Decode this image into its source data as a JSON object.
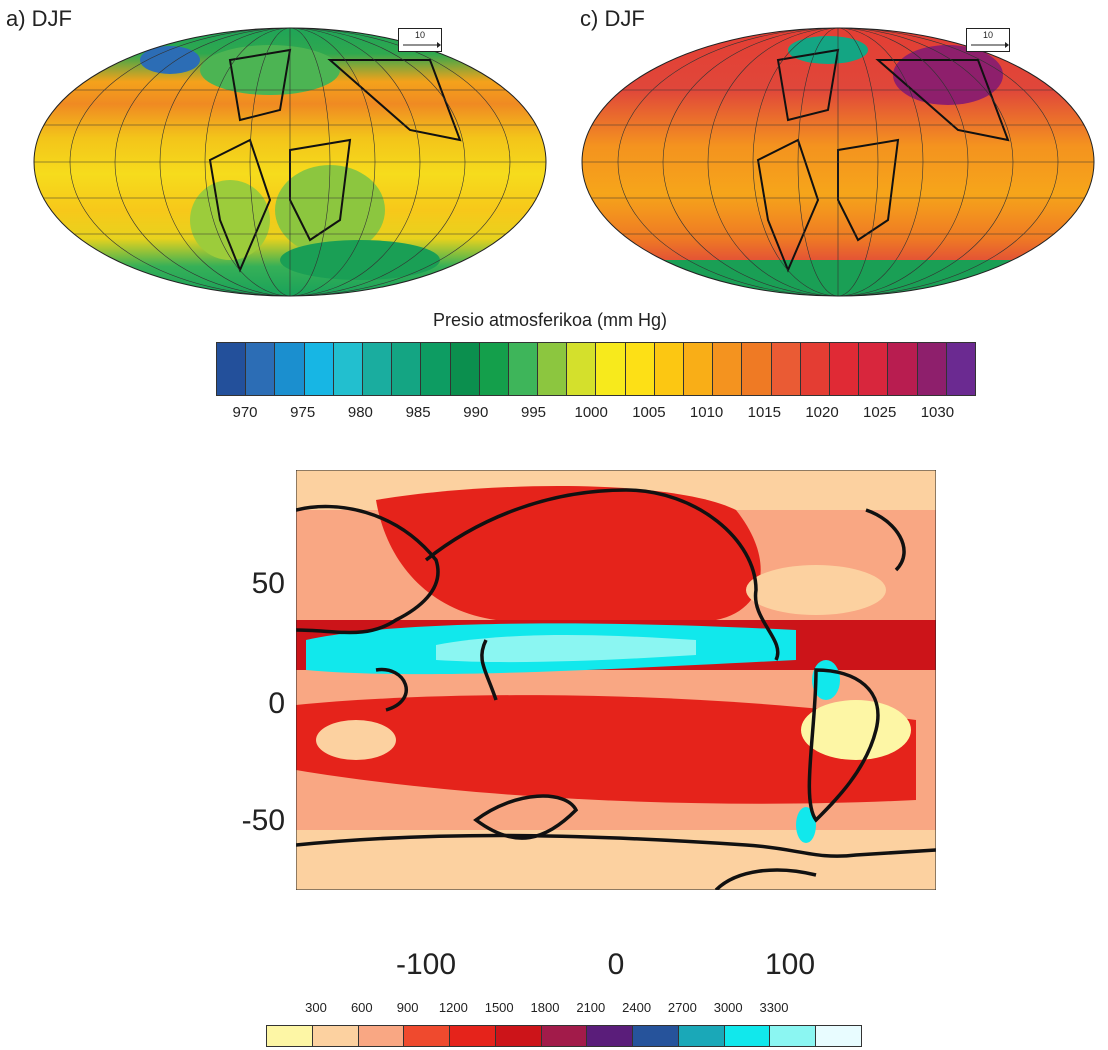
{
  "panels": {
    "left_label": "a) DJF",
    "right_label": "c) DJF",
    "vector_scale_left": "10",
    "vector_scale_right": "10"
  },
  "colorbar1": {
    "title": "Presio atmosferikoa (mm Hg)",
    "ticks": [
      "970",
      "975",
      "980",
      "985",
      "990",
      "995",
      "1000",
      "1005",
      "1010",
      "1015",
      "1020",
      "1025",
      "1030"
    ],
    "colors": [
      "#23509b",
      "#2c6db5",
      "#1b8fcf",
      "#17b6e4",
      "#22bfcf",
      "#1aad9f",
      "#14a583",
      "#0d9c62",
      "#0b8f4e",
      "#149f4b",
      "#3eb55a",
      "#8cc63f",
      "#d4e02c",
      "#f7ea1c",
      "#fde016",
      "#fcc712",
      "#f9ae17",
      "#f4931f",
      "#ef7a24",
      "#ea5b34",
      "#e43d33",
      "#e02a35",
      "#d8263d",
      "#b81d50",
      "#8e1f6c",
      "#6b2a91"
    ]
  },
  "map2": {
    "yticks": [
      "50",
      "0",
      "-50"
    ],
    "xticks": [
      "-100",
      "0",
      "100"
    ]
  },
  "colorbar2": {
    "ticks": [
      "300",
      "600",
      "900",
      "1200",
      "1500",
      "1800",
      "2100",
      "2400",
      "2700",
      "3000",
      "3300"
    ],
    "colors": [
      "#fdf6a5",
      "#fcd1a0",
      "#f9a783",
      "#ef4a2e",
      "#e5231b",
      "#cc1419",
      "#a21b4a",
      "#5a1d7a",
      "#26539b",
      "#1aa8b8",
      "#11e8ec",
      "#8bf6f2",
      "#e8fcff"
    ]
  }
}
